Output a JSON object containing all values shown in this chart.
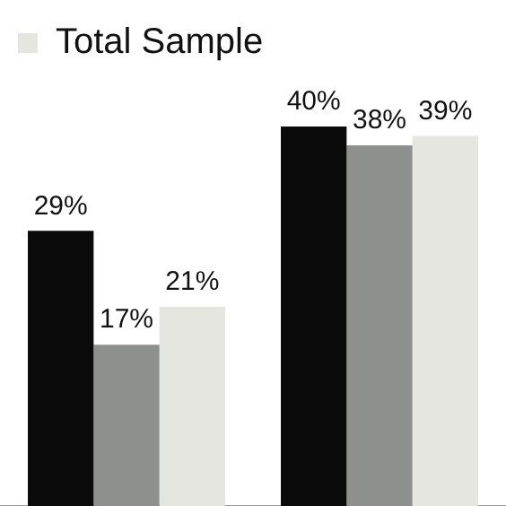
{
  "chart_data": {
    "type": "bar",
    "categories": [
      null,
      null
    ],
    "series": [
      {
        "color": "#0a0a0a",
        "values": [
          29,
          40
        ],
        "value_labels": [
          "29%",
          "40%"
        ]
      },
      {
        "color": "#8c918e",
        "values": [
          17,
          38
        ],
        "value_labels": [
          "17%",
          "38%"
        ]
      },
      {
        "name": "Total Sample",
        "color": "#e6e6e1",
        "values": [
          21,
          39
        ],
        "value_labels": [
          "21%",
          "39%"
        ]
      }
    ],
    "legend": "top left",
    "grid": false
  }
}
